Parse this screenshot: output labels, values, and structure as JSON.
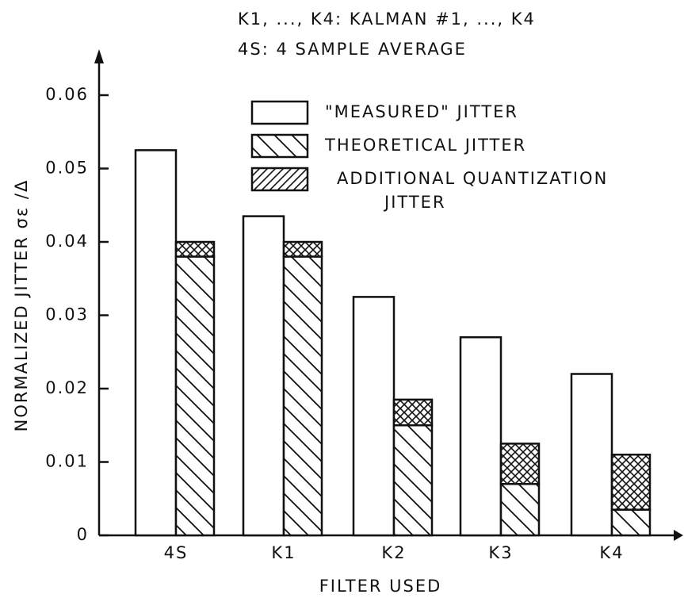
{
  "chart_data": {
    "type": "bar",
    "annotations": [
      "K1, ..., K4: KALMAN #1, ..., K4",
      "4S:  4 SAMPLE AVERAGE"
    ],
    "x_label": "FILTER USED",
    "y_label": "NORMALIZED JITTER σε /Δ",
    "categories": [
      "4S",
      "K1",
      "K2",
      "K3",
      "K4"
    ],
    "series": [
      {
        "name": "\"MEASURED\" JITTER",
        "color": "#ffffff",
        "values": [
          0.0525,
          0.0435,
          0.0325,
          0.027,
          0.022
        ]
      },
      {
        "name": "THEORETICAL JITTER",
        "color": "#ffffff",
        "values": [
          0.038,
          0.038,
          0.015,
          0.007,
          0.0035
        ]
      },
      {
        "name": "ADDITIONAL QUANTIZATION JITTER",
        "color": "#ffffff",
        "values": [
          0.002,
          0.002,
          0.0035,
          0.0055,
          0.0075
        ]
      }
    ],
    "ylim": [
      0,
      0.066
    ],
    "yticks": [
      0,
      0.01,
      0.02,
      0.03,
      0.04,
      0.05,
      0.06
    ]
  }
}
